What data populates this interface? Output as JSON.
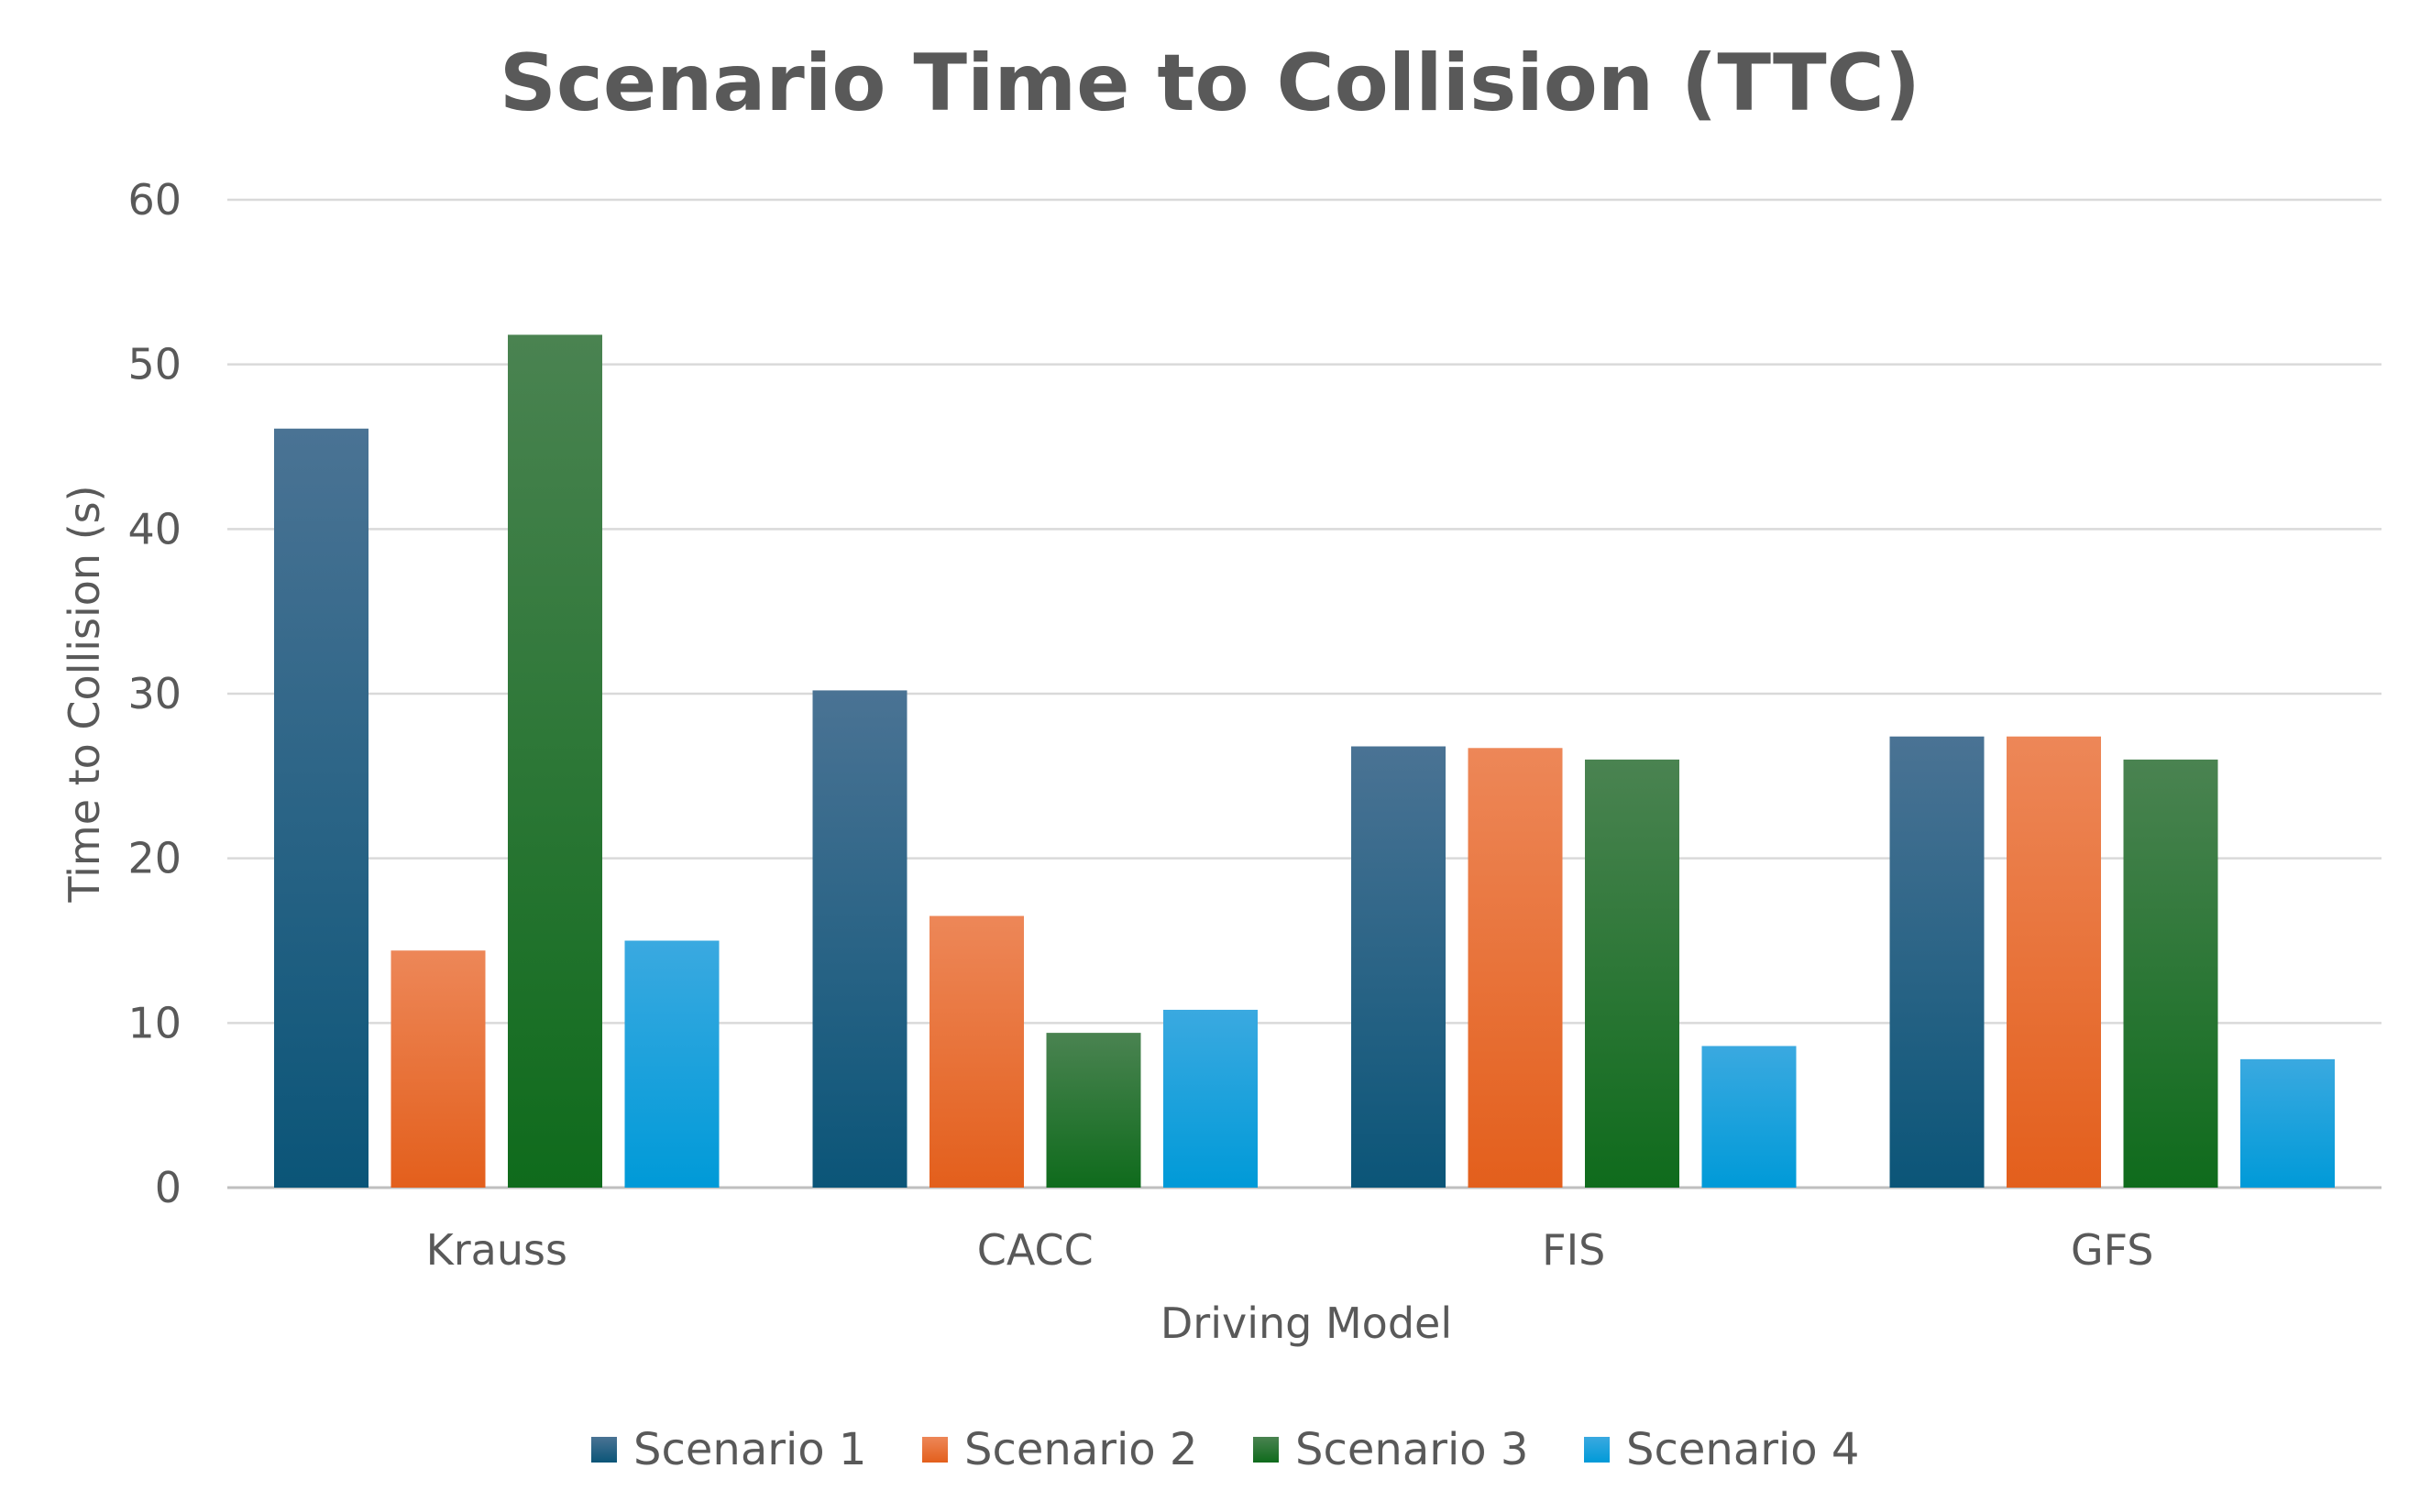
{
  "chart_data": {
    "type": "bar",
    "title": "Scenario Time to Collision (TTC)",
    "xlabel": "Driving Model",
    "ylabel": "Time to Collision (s)",
    "categories": [
      "Krauss",
      "CACC",
      "FIS",
      "GFS"
    ],
    "ylim": [
      0,
      60
    ],
    "yticks": [
      0,
      10,
      20,
      30,
      40,
      50,
      60
    ],
    "grid": true,
    "legend_position": "bottom",
    "series": [
      {
        "name": "Scenario 1",
        "values": [
          46.1,
          30.2,
          26.8,
          27.4
        ],
        "color_top": "#4a7394",
        "color_bottom": "#0b5578"
      },
      {
        "name": "Scenario 2",
        "values": [
          14.4,
          16.5,
          26.7,
          27.4
        ],
        "color_top": "#ed8758",
        "color_bottom": "#e35f1c"
      },
      {
        "name": "Scenario 3",
        "values": [
          51.8,
          9.4,
          26.0,
          26.0
        ],
        "color_top": "#4a8351",
        "color_bottom": "#0f6b1c"
      },
      {
        "name": "Scenario 4",
        "values": [
          15.0,
          10.8,
          8.6,
          7.8
        ],
        "color_top": "#3aa9e0",
        "color_bottom": "#009ad8"
      }
    ]
  }
}
